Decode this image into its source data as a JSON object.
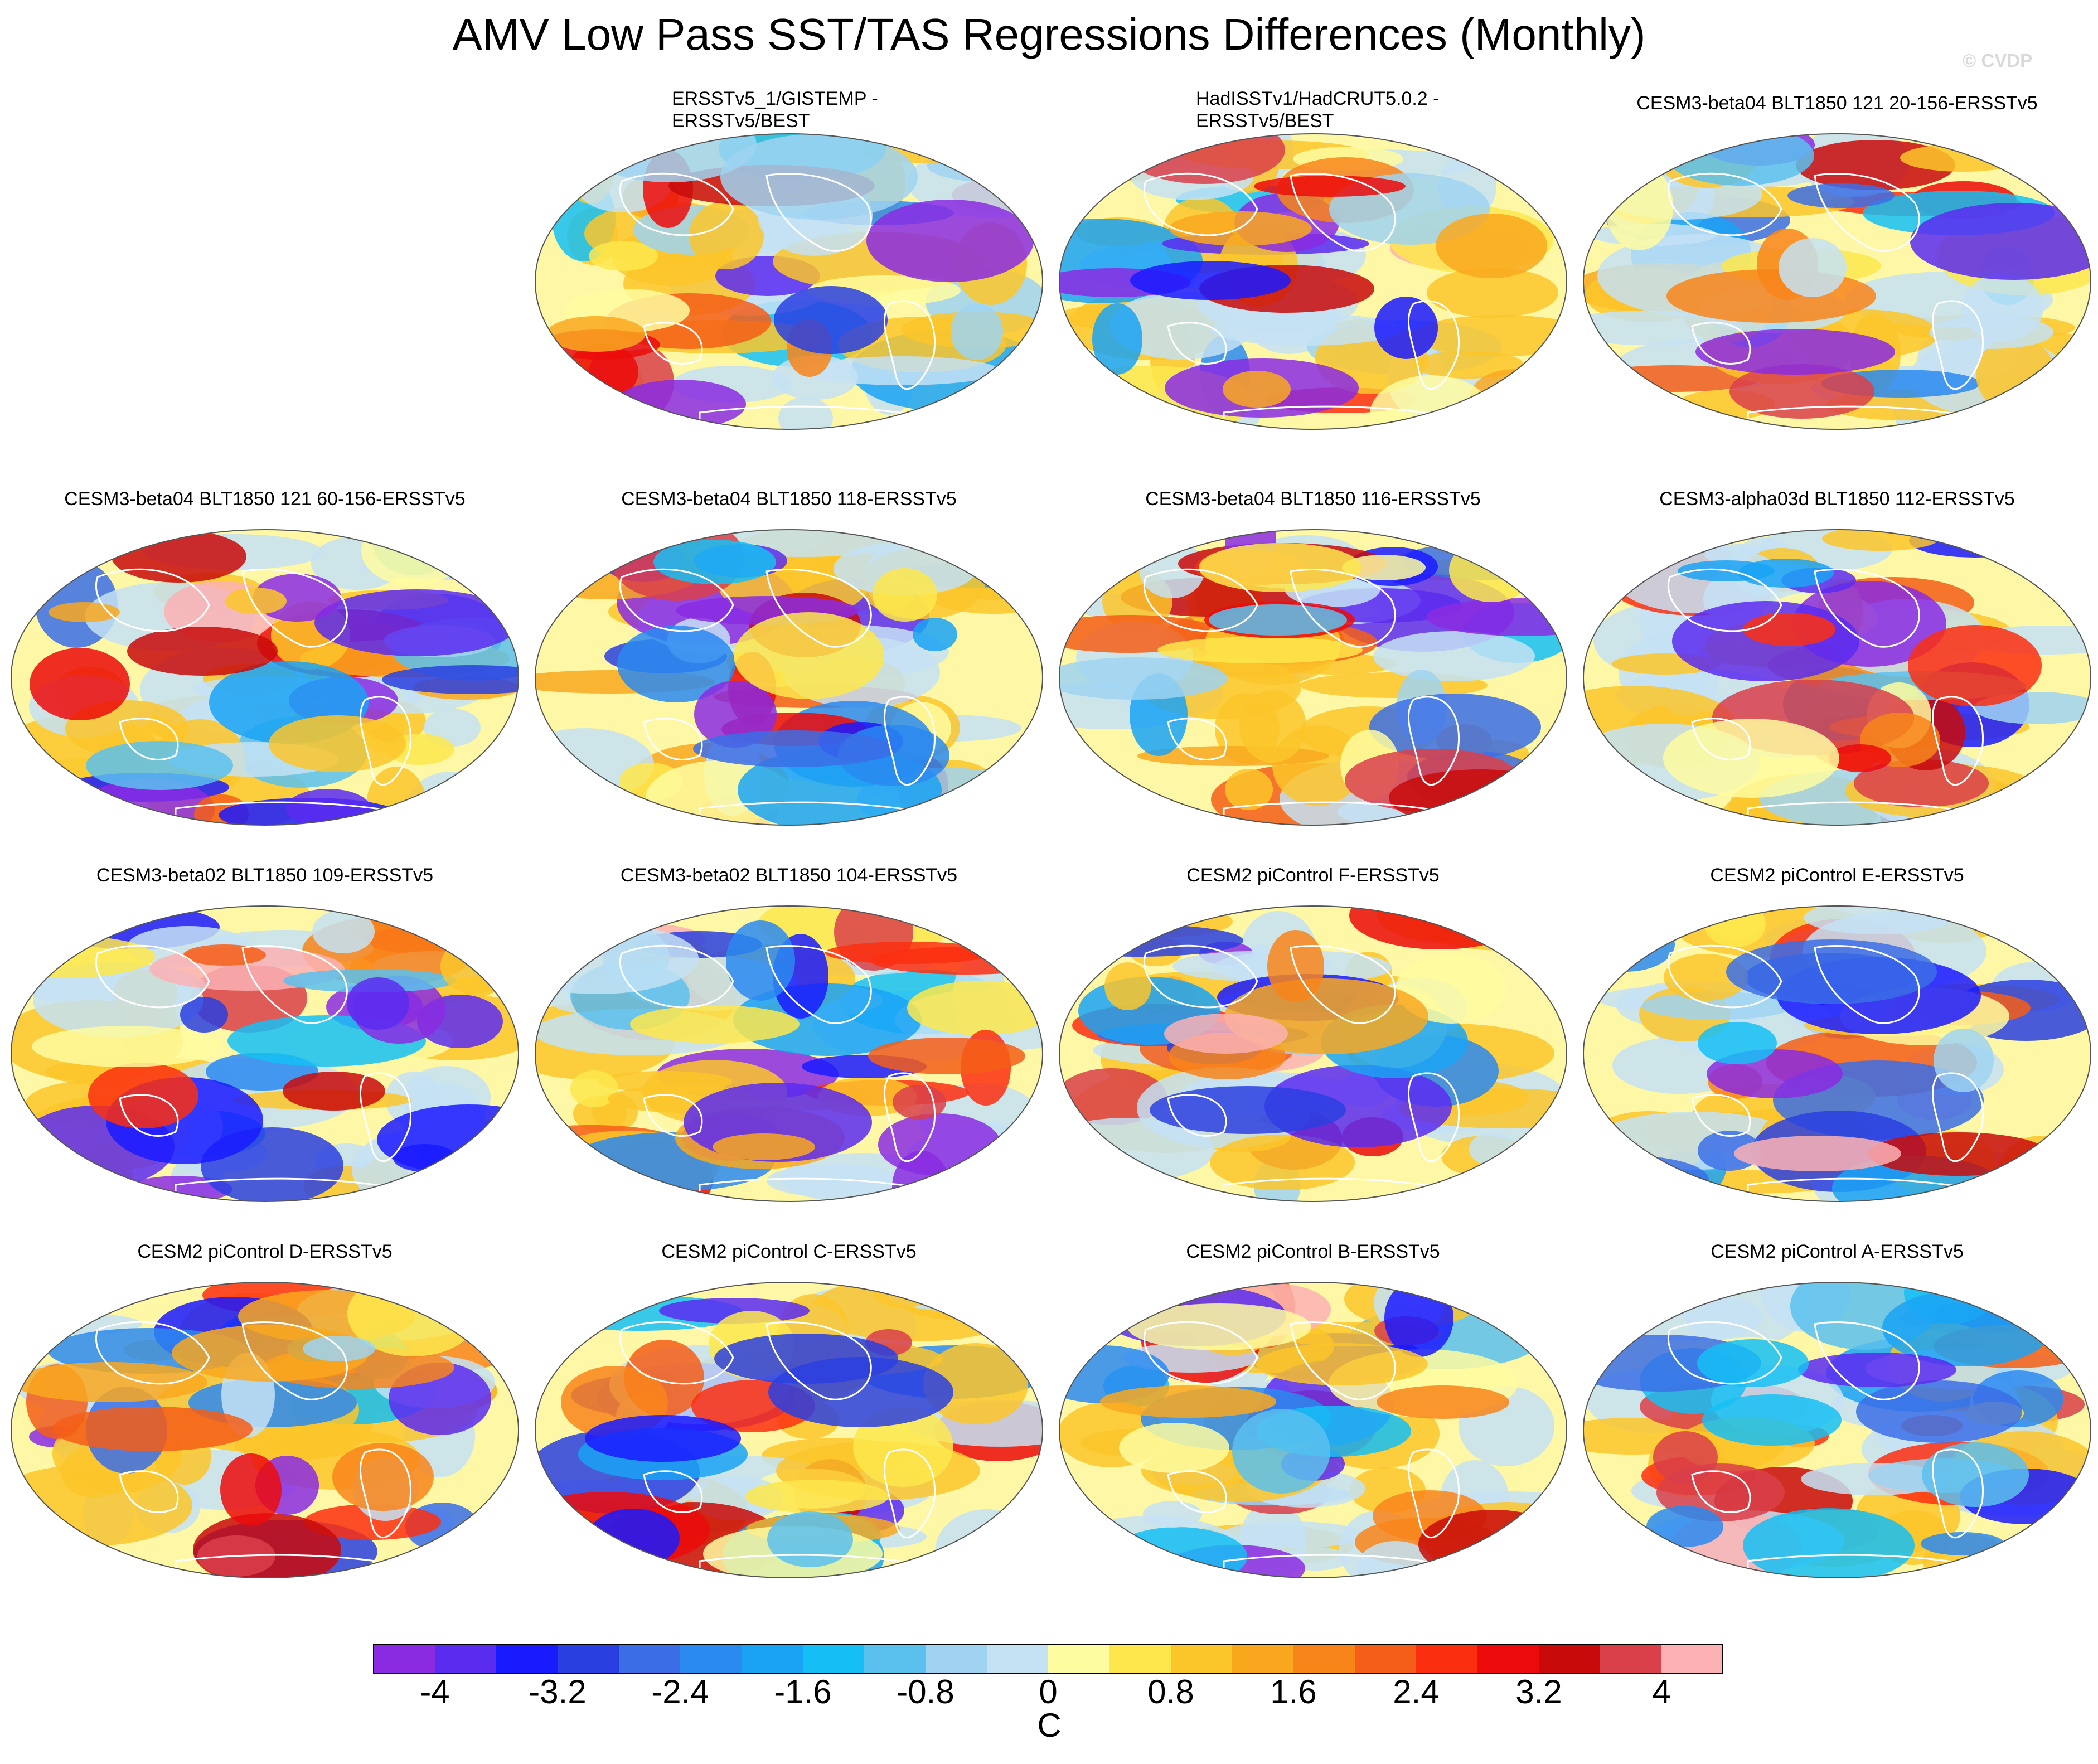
{
  "title": "AMV Low Pass SST/TAS Regressions Differences (Monthly)",
  "watermark": "© CVDP",
  "chart_data": {
    "type": "heatmap",
    "title": "AMV Low Pass SST/TAS Regressions Differences (Monthly)",
    "projection": "global robinson-like maps, 4x4 grid (first slot empty)",
    "panels": [
      {
        "title": "ERSSTv5_1/GISTEMP - ERSSTv5/BEST",
        "title_lines": [
          "ERSSTv5_1/GISTEMP -",
          "ERSSTv5/BEST"
        ]
      },
      {
        "title": "HadISSTv1/HadCRUT5.0.2 - ERSSTv5/BEST",
        "title_lines": [
          "HadISSTv1/HadCRUT5.0.2 -",
          "ERSSTv5/BEST"
        ]
      },
      {
        "title": "CESM3-beta04 BLT1850 121 20-156-ERSSTv5"
      },
      {
        "title": "CESM3-beta04 BLT1850 121 60-156-ERSSTv5"
      },
      {
        "title": "CESM3-beta04 BLT1850 118-ERSSTv5"
      },
      {
        "title": "CESM3-beta04 BLT1850 116-ERSSTv5"
      },
      {
        "title": "CESM3-alpha03d BLT1850 112-ERSSTv5"
      },
      {
        "title": "CESM3-beta02 BLT1850 109-ERSSTv5"
      },
      {
        "title": "CESM3-beta02 BLT1850 104-ERSSTv5"
      },
      {
        "title": "CESM2 piControl F-ERSSTv5"
      },
      {
        "title": "CESM2 piControl E-ERSSTv5"
      },
      {
        "title": "CESM2 piControl D-ERSSTv5"
      },
      {
        "title": "CESM2 piControl C-ERSSTv5"
      },
      {
        "title": "CESM2 piControl B-ERSSTv5"
      },
      {
        "title": "CESM2 piControl A-ERSSTv5"
      }
    ],
    "colorbar": {
      "units": "C",
      "range": [
        -4.4,
        4.4
      ],
      "step": 0.4,
      "tick_labels": [
        "-4",
        "-3.2",
        "-2.4",
        "-1.6",
        "-0.8",
        "0",
        "0.8",
        "1.6",
        "2.4",
        "3.2",
        "4"
      ],
      "colors": [
        "#8a2be2",
        "#5a2cf0",
        "#1a1aff",
        "#2a3fe0",
        "#3b6ee6",
        "#2a8af0",
        "#1aa3f5",
        "#15bff5",
        "#5ac1ee",
        "#9fd3f1",
        "#c4e2f4",
        "#fefca0",
        "#fde74c",
        "#fbc62a",
        "#f9a81e",
        "#f8851a",
        "#f55e18",
        "#fb2f10",
        "#ec0a0a",
        "#c80a0a",
        "#d9404a",
        "#fcb2b4"
      ]
    }
  }
}
